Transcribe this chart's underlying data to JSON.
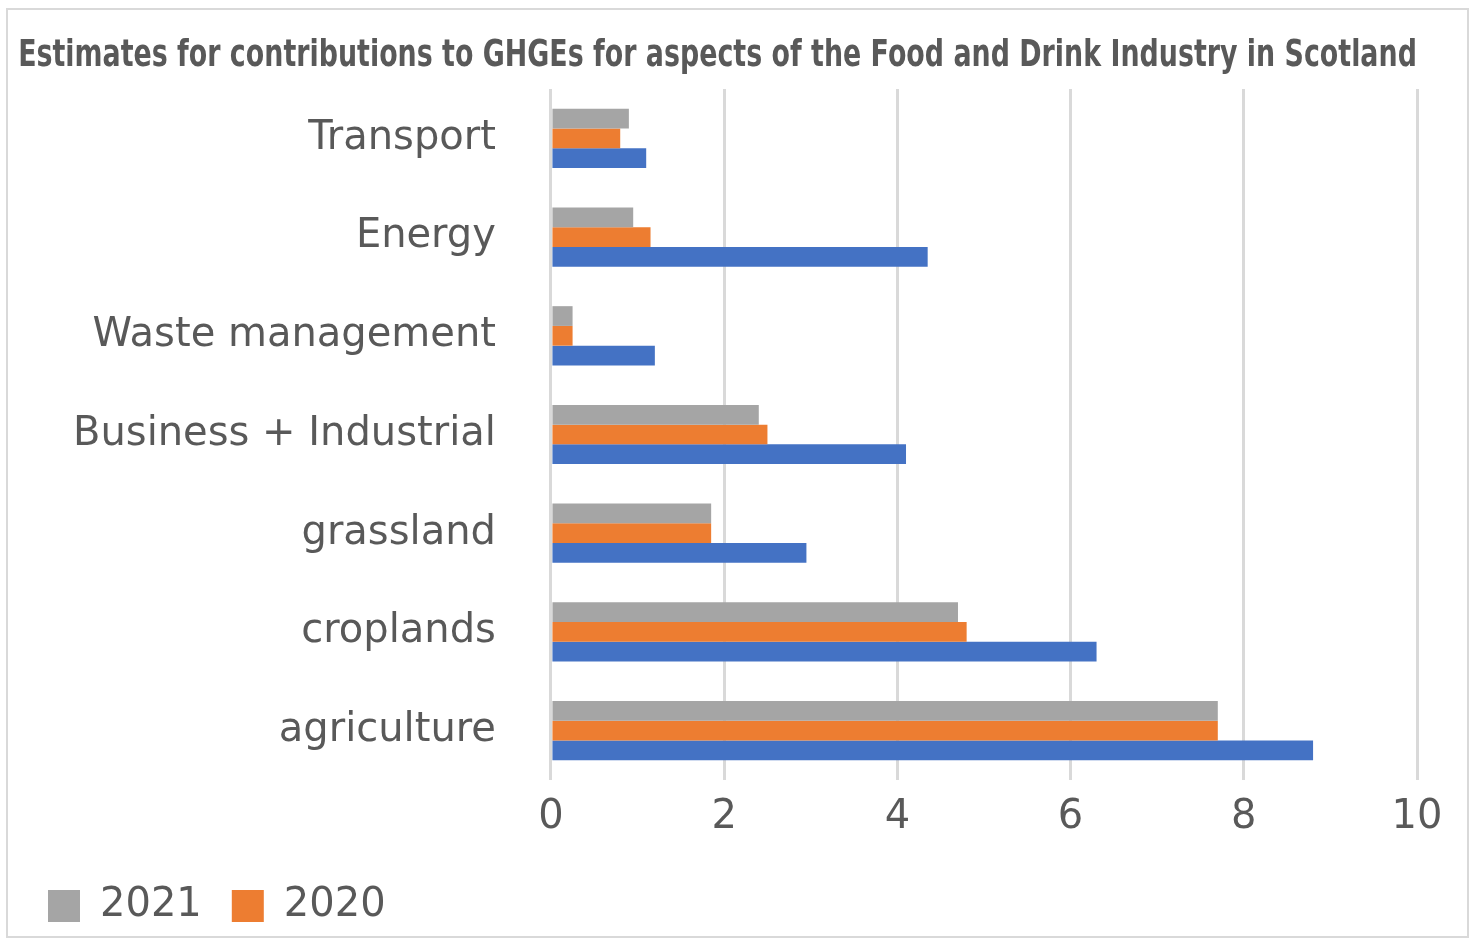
{
  "chart_data": {
    "type": "bar",
    "orientation": "horizontal",
    "title": "Estimates for contributions to GHGEs for aspects of the Food and Drink Industry in Scotland",
    "categories": [
      "Transport",
      "Energy",
      "Waste management",
      "Business + Industrial",
      "grassland",
      "croplands",
      "agriculture"
    ],
    "series": [
      {
        "name": "2021",
        "color": "#a5a5a5",
        "values": [
          0.9,
          0.95,
          0.25,
          2.4,
          1.85,
          4.7,
          7.7
        ]
      },
      {
        "name": "2020",
        "color": "#ed7d31",
        "values": [
          0.8,
          1.15,
          0.25,
          2.5,
          1.85,
          4.8,
          7.7
        ]
      },
      {
        "color": "#4472c4",
        "values": [
          1.1,
          4.35,
          1.2,
          4.1,
          2.95,
          6.3,
          8.8
        ]
      }
    ],
    "xlim": [
      0,
      10
    ],
    "xticks": [
      0,
      2,
      4,
      6,
      8,
      10
    ],
    "grid": "x",
    "legend": "bottom left"
  }
}
